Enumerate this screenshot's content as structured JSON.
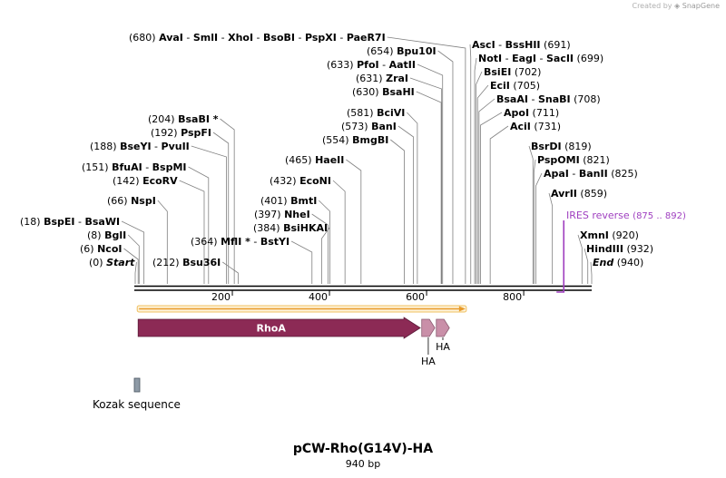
{
  "credit": {
    "prefix": "Created by",
    "brand": "SnapGene"
  },
  "plasmid": {
    "name": "pCW-Rho(G14V)-HA",
    "length_label": "940 bp",
    "length": 940
  },
  "ruler": {
    "ticks": [
      {
        "pos": 200,
        "label": "200"
      },
      {
        "pos": 400,
        "label": "400"
      },
      {
        "pos": 600,
        "label": "600"
      },
      {
        "pos": 800,
        "label": "800"
      }
    ]
  },
  "site_labels": [
    {
      "id": "start",
      "pos": 0,
      "text": "(0)",
      "names": [
        "Start"
      ],
      "italic": true
    },
    {
      "id": "ncoi",
      "pos": 6,
      "text": "(6)",
      "names": [
        "NcoI"
      ]
    },
    {
      "id": "bgli",
      "pos": 8,
      "text": "(8)",
      "names": [
        "BglI"
      ]
    },
    {
      "id": "bspei",
      "pos": 18,
      "text": "(18)",
      "names": [
        "BspEI",
        "BsaWI"
      ]
    },
    {
      "id": "nspi",
      "pos": 66,
      "text": "(66)",
      "names": [
        "NspI"
      ]
    },
    {
      "id": "ecorv",
      "pos": 142,
      "text": "(142)",
      "names": [
        "EcoRV"
      ]
    },
    {
      "id": "bfuai",
      "pos": 151,
      "text": "(151)",
      "names": [
        "BfuAI",
        "BspMI"
      ]
    },
    {
      "id": "bseyi",
      "pos": 188,
      "text": "(188)",
      "names": [
        "BseYI",
        "PvuII"
      ]
    },
    {
      "id": "pspfi",
      "pos": 192,
      "text": "(192)",
      "names": [
        "PspFI"
      ]
    },
    {
      "id": "bsabi",
      "pos": 204,
      "text": "(204)",
      "names": [
        "BsaBI"
      ],
      "star": "*"
    },
    {
      "id": "bsu36i",
      "pos": 212,
      "text": "(212)",
      "names": [
        "Bsu36I"
      ],
      "number_first": true
    },
    {
      "id": "mfli",
      "pos": 364,
      "text": "(364)",
      "names": [
        "MflI",
        "BstYI"
      ],
      "star": "*"
    },
    {
      "id": "bsihkai",
      "pos": 384,
      "text": "(384)",
      "names": [
        "BsiHKAI"
      ]
    },
    {
      "id": "nhei",
      "pos": 397,
      "text": "(397)",
      "names": [
        "NheI"
      ]
    },
    {
      "id": "bmti",
      "pos": 401,
      "text": "(401)",
      "names": [
        "BmtI"
      ]
    },
    {
      "id": "econi",
      "pos": 432,
      "text": "(432)",
      "names": [
        "EcoNI"
      ]
    },
    {
      "id": "haeii",
      "pos": 465,
      "text": "(465)",
      "names": [
        "HaeII"
      ]
    },
    {
      "id": "bmgbi",
      "pos": 554,
      "text": "(554)",
      "names": [
        "BmgBI"
      ]
    },
    {
      "id": "bani",
      "pos": 573,
      "text": "(573)",
      "names": [
        "BanI"
      ]
    },
    {
      "id": "bcivi",
      "pos": 581,
      "text": "(581)",
      "names": [
        "BciVI"
      ]
    },
    {
      "id": "bsahi",
      "pos": 630,
      "text": "(630)",
      "names": [
        "BsaHI"
      ]
    },
    {
      "id": "zrai",
      "pos": 631,
      "text": "(631)",
      "names": [
        "ZraI"
      ]
    },
    {
      "id": "pfoi",
      "pos": 633,
      "text": "(633)",
      "names": [
        "PfoI",
        "AatII"
      ]
    },
    {
      "id": "bpu10i",
      "pos": 654,
      "text": "(654)",
      "names": [
        "Bpu10I"
      ]
    },
    {
      "id": "avai",
      "pos": 680,
      "text": "(680)",
      "names": [
        "AvaI",
        "SmlI",
        "XhoI",
        "BsoBI",
        "PspXI",
        "PaeR7I"
      ]
    },
    {
      "id": "asci",
      "pos": 691,
      "text": "(691)",
      "names": [
        "AscI",
        "BssHII"
      ]
    },
    {
      "id": "noti",
      "pos": 699,
      "text": "(699)",
      "names": [
        "NotI",
        "EagI",
        "SacII"
      ]
    },
    {
      "id": "bsiei",
      "pos": 702,
      "text": "(702)",
      "names": [
        "BsiEI"
      ]
    },
    {
      "id": "ecii",
      "pos": 705,
      "text": "(705)",
      "names": [
        "EciI"
      ]
    },
    {
      "id": "bsaai",
      "pos": 708,
      "text": "(708)",
      "names": [
        "BsaAI",
        "SnaBI"
      ]
    },
    {
      "id": "apoi",
      "pos": 711,
      "text": "(711)",
      "names": [
        "ApoI"
      ]
    },
    {
      "id": "acii",
      "pos": 731,
      "text": "(731)",
      "names": [
        "AciI"
      ]
    },
    {
      "id": "bsrdi",
      "pos": 819,
      "text": "(819)",
      "names": [
        "BsrDI"
      ]
    },
    {
      "id": "pspomi",
      "pos": 821,
      "text": "(821)",
      "names": [
        "PspOMI"
      ]
    },
    {
      "id": "apai",
      "pos": 825,
      "text": "(825)",
      "names": [
        "ApaI",
        "BanII"
      ]
    },
    {
      "id": "avrii",
      "pos": 859,
      "text": "(859)",
      "names": [
        "AvrII"
      ]
    },
    {
      "id": "xmni",
      "pos": 920,
      "text": "(920)",
      "names": [
        "XmnI"
      ]
    },
    {
      "id": "hindiii",
      "pos": 932,
      "text": "(932)",
      "names": [
        "HindIII"
      ]
    },
    {
      "id": "end",
      "pos": 940,
      "text": "(940)",
      "names": [
        "End"
      ],
      "italic": true
    }
  ],
  "primer": {
    "name": "IRES reverse",
    "range": "(875 .. 892)",
    "start": 875,
    "end": 892,
    "color": "#a040c0"
  },
  "orf": {
    "start": 6,
    "end": 680,
    "color": "#e89a2a"
  },
  "features": [
    {
      "id": "rhoa",
      "name": "RhoA",
      "start": 6,
      "end": 587,
      "color": "#8c2a55"
    },
    {
      "id": "ha1",
      "name": "HA",
      "start": 590,
      "end": 617,
      "color": "#c98fa8"
    },
    {
      "id": "ha2",
      "name": "HA",
      "start": 620,
      "end": 647,
      "color": "#c98fa8"
    }
  ],
  "kozak": {
    "name": "Kozak sequence",
    "start": 0,
    "end": 6,
    "color": "#8e9aa6"
  }
}
